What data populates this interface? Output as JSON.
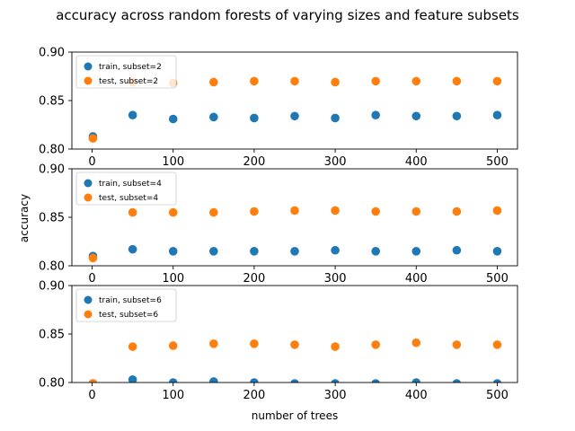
{
  "chart_data": {
    "type": "scatter",
    "title": "accuracy across random forests of varying sizes and feature subsets",
    "xlabel": "number of trees",
    "ylabel": "accuracy",
    "xlim": [
      -25,
      525
    ],
    "ylim": [
      0.8,
      0.9
    ],
    "x_ticks": [
      "0",
      "100",
      "200",
      "300",
      "400",
      "500"
    ],
    "y_ticks": [
      "0.80",
      "0.85",
      "0.90"
    ],
    "colors": {
      "train": "#1f77b4",
      "test": "#ff7f0e"
    },
    "legend_position": "upper-left",
    "panels": [
      {
        "x": [
          1,
          50,
          100,
          150,
          200,
          250,
          300,
          350,
          400,
          450,
          500
        ],
        "series": [
          {
            "name": "train, subset=2",
            "values": [
              0.813,
              0.835,
              0.831,
              0.833,
              0.832,
              0.834,
              0.832,
              0.835,
              0.834,
              0.834,
              0.835
            ]
          },
          {
            "name": "test, subset=2",
            "values": [
              0.811,
              0.869,
              0.868,
              0.869,
              0.87,
              0.87,
              0.869,
              0.87,
              0.87,
              0.87,
              0.87
            ]
          }
        ]
      },
      {
        "x": [
          1,
          50,
          100,
          150,
          200,
          250,
          300,
          350,
          400,
          450,
          500
        ],
        "series": [
          {
            "name": "train, subset=4",
            "values": [
              0.81,
              0.817,
              0.815,
              0.815,
              0.815,
              0.815,
              0.816,
              0.815,
              0.815,
              0.816,
              0.815
            ]
          },
          {
            "name": "test, subset=4",
            "values": [
              0.808,
              0.855,
              0.855,
              0.855,
              0.856,
              0.857,
              0.857,
              0.856,
              0.856,
              0.856,
              0.857
            ]
          }
        ]
      },
      {
        "x": [
          1,
          50,
          100,
          150,
          200,
          250,
          300,
          350,
          400,
          450,
          500
        ],
        "series": [
          {
            "name": "train, subset=6",
            "values": [
              0.799,
              0.803,
              0.8,
              0.801,
              0.8,
              0.799,
              0.799,
              0.799,
              0.8,
              0.799,
              0.799
            ]
          },
          {
            "name": "test, subset=6",
            "values": [
              0.799,
              0.837,
              0.838,
              0.84,
              0.84,
              0.839,
              0.837,
              0.839,
              0.841,
              0.839,
              0.839
            ]
          }
        ]
      }
    ]
  }
}
